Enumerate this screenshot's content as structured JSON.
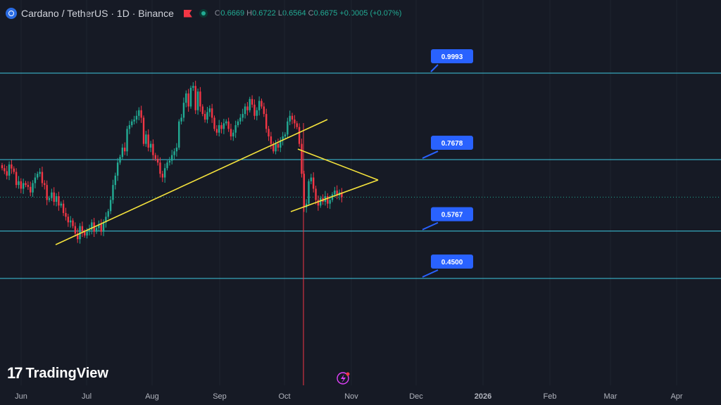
{
  "header": {
    "symbol": "Cardano / TetherUS · 1D · Binance",
    "o_label": "O",
    "o_value": "0.6669",
    "h_label": "H",
    "h_value": "0.6722",
    "l_label": "L",
    "l_value": "0.6564",
    "c_label": "C",
    "c_value": "0.6675",
    "change": "+0.0005 (+0.07%)"
  },
  "branding": {
    "logo_text": "TradingView"
  },
  "colors": {
    "background": "#161a25",
    "up": "#22ab94",
    "down": "#f23645",
    "levels": "#3ec8e0",
    "trendlines": "#f5e33c",
    "label_bg": "#2962ff"
  },
  "icons": [
    "coin-icon",
    "flag-icon",
    "status-dot-icon",
    "lightning-icon"
  ],
  "chart_data": {
    "type": "candlestick",
    "title": "Cardano / TetherUS · 1D · Binance",
    "x_ticks": [
      "Jun",
      "Jul",
      "Aug",
      "Sep",
      "Oct",
      "Nov",
      "Dec",
      "2026",
      "Feb",
      "Mar",
      "Apr"
    ],
    "horizontal_levels": [
      {
        "label": "0.9993",
        "value": 0.9993
      },
      {
        "label": "0.7678",
        "value": 0.7678
      },
      {
        "label": "0.5767",
        "value": 0.5767
      },
      {
        "label": "0.4500",
        "value": 0.45
      }
    ],
    "last_close": 0.6675,
    "closes": [
      0.745,
      0.737,
      0.725,
      0.755,
      0.744,
      0.735,
      0.7,
      0.71,
      0.69,
      0.705,
      0.7,
      0.695,
      0.68,
      0.705,
      0.72,
      0.73,
      0.735,
      0.705,
      0.7,
      0.66,
      0.665,
      0.68,
      0.655,
      0.67,
      0.645,
      0.65,
      0.625,
      0.615,
      0.6,
      0.605,
      0.59,
      0.57,
      0.555,
      0.59,
      0.575,
      0.565,
      0.575,
      0.58,
      0.6,
      0.575,
      0.585,
      0.595,
      0.575,
      0.6,
      0.615,
      0.63,
      0.66,
      0.7,
      0.725,
      0.76,
      0.775,
      0.8,
      0.79,
      0.85,
      0.86,
      0.87,
      0.875,
      0.885,
      0.9,
      0.88,
      0.81,
      0.835,
      0.8,
      0.81,
      0.78,
      0.77,
      0.76,
      0.73,
      0.72,
      0.745,
      0.76,
      0.765,
      0.78,
      0.79,
      0.8,
      0.87,
      0.88,
      0.92,
      0.945,
      0.91,
      0.96,
      0.965,
      0.9,
      0.95,
      0.91,
      0.89,
      0.875,
      0.895,
      0.905,
      0.88,
      0.85,
      0.84,
      0.86,
      0.85,
      0.865,
      0.87,
      0.85,
      0.83,
      0.84,
      0.86,
      0.87,
      0.88,
      0.89,
      0.91,
      0.9,
      0.93,
      0.915,
      0.885,
      0.9,
      0.925,
      0.91,
      0.89,
      0.85,
      0.83,
      0.81,
      0.79,
      0.81,
      0.8,
      0.82,
      0.83,
      0.835,
      0.87,
      0.885,
      0.875,
      0.865,
      0.855,
      0.81,
      0.73,
      0.64,
      0.65,
      0.71,
      0.72,
      0.69,
      0.66,
      0.645,
      0.665,
      0.655,
      0.67,
      0.65,
      0.66,
      0.675,
      0.685,
      0.672,
      0.68,
      0.6675
    ]
  }
}
